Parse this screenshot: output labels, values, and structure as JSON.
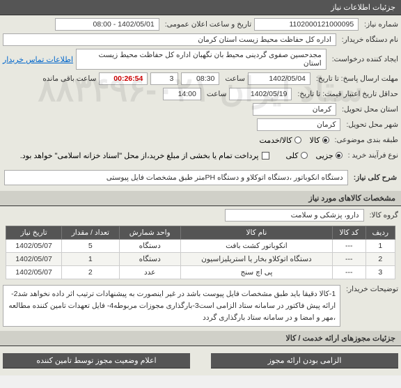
{
  "colors": {
    "header_bg": "#555555",
    "header_fg": "#ffffff",
    "panel_bg": "#e8e8e0",
    "input_bg": "#ffffff",
    "border": "#aaaaaa",
    "link": "#0066cc",
    "timer": "#cc0000",
    "watermark": "rgba(0,0,0,0.08)"
  },
  "sections": {
    "info_header": "جزئیات اطلاعات نیاز",
    "desc_header": "شرح کلی نیاز:",
    "goods_header": "مشخصات کالاهای مورد نیاز",
    "auth_header": "الزامی بودن ارائه مجوز",
    "auth_status": "اعلام وضعیت مجوز توسط تامین کننده",
    "offers_header": "جزئیات مجوزهای ارائه خدمت / کالا"
  },
  "form": {
    "need_no_label": "شماره نیاز:",
    "need_no": "1102000121000095",
    "announce_label": "تاریخ و ساعت اعلان عمومی:",
    "announce": "1402/05/01 - 08:00",
    "buyer_label": "نام دستگاه خریدار:",
    "buyer": "اداره کل حفاظت محیط زیست استان کرمان",
    "requester_label": "ایجاد کننده درخواست:",
    "requester": "مجدحسین صفوی گردینی محیط بان نگهبان اداره کل حفاظت محیط زیست استان",
    "contact_link": "اطلاعات تماس خریدار",
    "deadline_label": "مهلت ارسال پاسخ: تا تاریخ:",
    "deadline_date": "1402/05/04",
    "time_label": "ساعت",
    "deadline_time": "08:30",
    "days": "3",
    "remaining_label": "ساعت باقی مانده",
    "remaining": "00:26:54",
    "validity_label": "حداقل تاریخ اعتبار قیمت: تا تاریخ:",
    "validity_date": "1402/05/19",
    "validity_time": "14:00",
    "req_province_label": "استان محل تحویل:",
    "req_province": "کرمان",
    "city_label": "شهر محل تحویل:",
    "city": "کرمان",
    "grouping_label": "طبقه بندی موضوعی:",
    "grouping_options": [
      "کالا",
      "کالا/خدمت"
    ],
    "grouping_selected": 0,
    "buy_process_label": "نوع فرآیند خرید :",
    "buy_process_options": [
      "جزیی",
      "کلی"
    ],
    "buy_process_selected": 0,
    "payment_note": "پرداخت تمام یا بخشی از مبلغ خرید،از محل \"اسناد خزانه اسلامی\" خواهد بود.",
    "payment_checked": false
  },
  "description": "دستگاه انکوباتور ،دستگاه اتوکلاو و دستگاه PHمتر طبق مشخصات فایل پیوستی",
  "goods_group_label": "گروه کالا:",
  "goods_group": "دارو، پزشکی و سلامت",
  "table": {
    "columns": [
      "ردیف",
      "کد کالا",
      "نام کالا",
      "واحد شمارش",
      "تعداد / مقدار",
      "تاریخ نیاز"
    ],
    "rows": [
      [
        "1",
        "---",
        "انکوباتور کشت بافت",
        "دستگاه",
        "5",
        "1402/05/07"
      ],
      [
        "2",
        "---",
        "دستگاه اتوکلاو بخار یا استریلیزاسیون",
        "دستگاه",
        "1",
        "1402/05/07"
      ],
      [
        "3",
        "---",
        "پی اچ سنج",
        "عدد",
        "2",
        "1402/05/07"
      ]
    ]
  },
  "buyer_notes_label": "توضیحات خریدار:",
  "buyer_notes": "1-کالا دقیقا باید طبق مشخصات فایل پیوست باشد در غیر اینصورت به پیشنهادات ترتیب اثر داده نخواهد شد2-ارائه پیش فاکتور در سامانه ستاد الزامی است3-بارگذاری مجوزات مربوطه4- فایل تعهدات تامین کننده مطالعه ،مهر و امضا و در سامانه ستاد بارگذاری گردد",
  "watermark": "ستاد ایران\n۰۲۱-۸۸۳۴۹۶"
}
